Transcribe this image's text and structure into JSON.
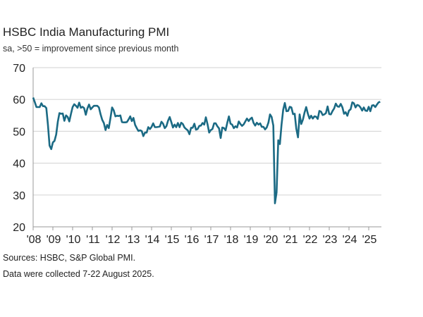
{
  "chart_data": {
    "type": "line",
    "title": "HSBC India Manufacturing PMI",
    "subtitle": "sa, >50 = improvement since previous month",
    "xlabel": "",
    "ylabel": "",
    "ylim": [
      20,
      70
    ],
    "yticks": [
      "20",
      "30",
      "40",
      "50",
      "60",
      "70"
    ],
    "xticks": [
      "'08",
      "'09",
      "'10",
      "'11",
      "'12",
      "'13",
      "'14",
      "'15",
      "'16",
      "'17",
      "'18",
      "'19",
      "'20",
      "'21",
      "'22",
      "'23",
      "'24",
      "'25"
    ],
    "grid": true,
    "line_color": "#1b6a84",
    "series": [
      {
        "monthly_values_by_year": [
          {
            "year": 2008,
            "values": [
              60.6,
              59.2,
              57.6,
              57.6,
              57.6,
              58.8,
              57.9,
              57.9,
              57.3,
              52.0,
              45.5,
              44.4
            ]
          },
          {
            "year": 2009,
            "values": [
              46.5,
              47.0,
              49.0,
              53.0,
              55.7,
              55.5,
              55.6,
              53.3,
              55.0,
              54.5,
              53.1,
              55.5
            ]
          },
          {
            "year": 2010,
            "values": [
              57.6,
              58.5,
              58.0,
              57.4,
              59.0,
              57.4,
              57.7,
              57.3,
              55.2,
              57.2,
              58.4,
              56.9
            ]
          },
          {
            "year": 2011,
            "values": [
              57.5,
              58.0,
              58.0,
              58.0,
              57.5,
              55.3,
              53.6,
              52.6,
              50.4,
              52.0,
              51.0,
              54.2
            ]
          },
          {
            "year": 2012,
            "values": [
              57.5,
              56.6,
              54.7,
              54.9,
              54.8,
              55.0,
              52.9,
              52.8,
              52.8,
              52.9,
              53.7,
              54.7
            ]
          },
          {
            "year": 2013,
            "values": [
              53.2,
              54.2,
              52.0,
              51.0,
              50.1,
              50.3,
              50.1,
              48.5,
              49.6,
              49.6,
              51.3,
              50.7
            ]
          },
          {
            "year": 2014,
            "values": [
              51.4,
              52.5,
              51.3,
              51.3,
              51.4,
              51.5,
              53.0,
              52.4,
              51.0,
              51.6,
              53.3,
              54.5
            ]
          },
          {
            "year": 2015,
            "values": [
              52.9,
              51.2,
              52.1,
              51.3,
              52.6,
              51.3,
              52.7,
              52.3,
              51.2,
              50.7,
              50.3,
              49.1
            ]
          },
          {
            "year": 2016,
            "values": [
              51.1,
              51.1,
              52.4,
              50.5,
              50.7,
              51.7,
              51.8,
              52.6,
              52.1,
              54.4,
              52.3,
              49.6
            ]
          },
          {
            "year": 2017,
            "values": [
              50.4,
              50.7,
              52.5,
              52.5,
              51.6,
              50.9,
              47.9,
              51.2,
              51.0,
              50.3,
              52.6,
              54.7
            ]
          },
          {
            "year": 2018,
            "values": [
              52.4,
              52.1,
              51.0,
              51.6,
              51.2,
              53.1,
              52.3,
              51.7,
              52.2,
              53.1,
              54.0,
              53.2
            ]
          },
          {
            "year": 2019,
            "values": [
              53.9,
              54.3,
              52.6,
              51.8,
              52.7,
              52.1,
              52.5,
              51.4,
              51.4,
              50.6,
              51.2,
              52.7
            ]
          },
          {
            "year": 2020,
            "values": [
              55.3,
              54.5,
              51.8,
              27.4,
              30.8,
              47.2,
              46.0,
              52.0,
              56.8,
              58.9,
              56.3,
              56.4
            ]
          },
          {
            "year": 2021,
            "values": [
              57.7,
              57.5,
              55.4,
              55.5,
              50.8,
              48.1,
              55.3,
              52.3,
              53.7,
              55.9,
              57.6,
              55.5
            ]
          },
          {
            "year": 2022,
            "values": [
              54.0,
              54.9,
              54.0,
              54.7,
              54.6,
              53.9,
              56.4,
              56.2,
              55.1,
              55.3,
              55.7,
              57.8
            ]
          },
          {
            "year": 2023,
            "values": [
              55.4,
              55.3,
              56.4,
              57.2,
              58.7,
              57.8,
              57.7,
              58.6,
              57.5,
              55.5,
              56.0,
              54.9
            ]
          },
          {
            "year": 2024,
            "values": [
              56.5,
              56.9,
              59.1,
              58.8,
              57.5,
              58.3,
              58.1,
              57.5,
              56.5,
              57.5,
              56.5,
              56.4
            ]
          },
          {
            "year": 2025,
            "values": [
              57.7,
              56.3,
              58.1,
              58.2,
              57.6,
              58.4,
              59.1,
              59.3
            ]
          }
        ]
      }
    ],
    "sources": "Sources: HSBC, S&P Global PMI.",
    "note": "Data were collected 7-22 August 2025."
  }
}
